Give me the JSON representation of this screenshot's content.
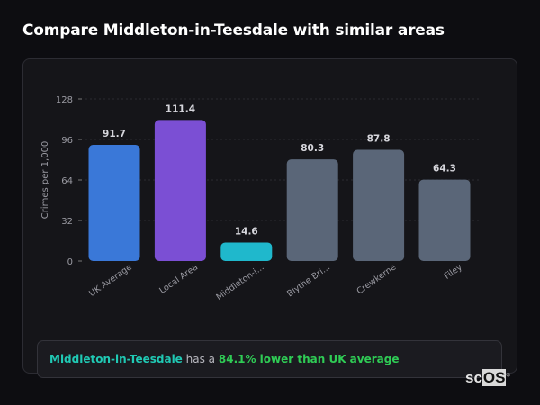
{
  "title": "Compare Middleton-in-Teesdale with similar areas",
  "chart_data": {
    "type": "bar",
    "ylabel": "Crimes per 1,000",
    "ylim": [
      0,
      128
    ],
    "yticks": [
      0,
      32,
      64,
      96,
      128
    ],
    "grid": true,
    "categories": [
      "UK Average",
      "Local Area",
      "Middleton-i...",
      "Blythe Bri...",
      "Crewkerne",
      "Filey"
    ],
    "values": [
      91.7,
      111.4,
      14.6,
      80.3,
      87.8,
      64.3
    ],
    "data_labels": [
      "91.7",
      "111.4",
      "14.6",
      "80.3",
      "87.8",
      "64.3"
    ],
    "colors": [
      "#3a78d8",
      "#7b4fd4",
      "#1fb8cc",
      "#5a6678",
      "#5a6678",
      "#5a6678"
    ]
  },
  "callout": {
    "area": "Middleton-in-Teesdale",
    "connector": "has a",
    "stat": "84.1% lower than UK average"
  },
  "logo": {
    "text_a": "sc",
    "text_b": "OS",
    "mark": "®"
  }
}
